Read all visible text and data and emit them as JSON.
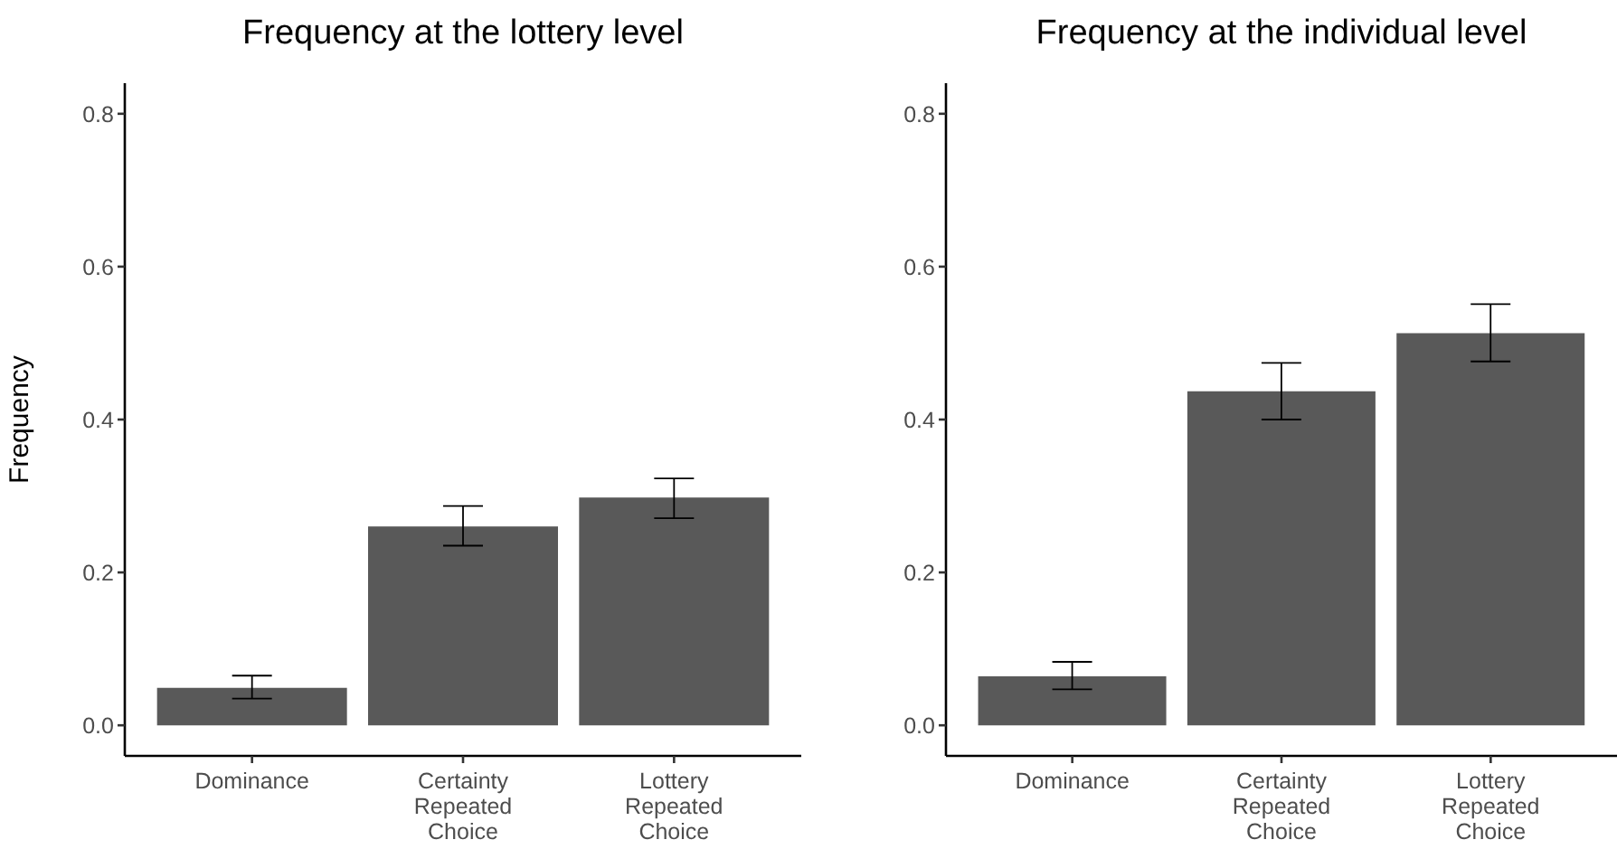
{
  "chart_data": [
    {
      "type": "bar",
      "title": "Frequency at the lottery level",
      "ylabel": "Frequency",
      "categories": [
        "Dominance",
        "Certainty Repeated Choice",
        "Lottery Repeated Choice"
      ],
      "color": "#595959",
      "values": [
        0.049,
        0.26,
        0.298
      ],
      "errors": [
        [
          0.035,
          0.065
        ],
        [
          0.235,
          0.287
        ],
        [
          0.271,
          0.323
        ]
      ],
      "ylim": [
        -0.04,
        0.84
      ],
      "yticks": [
        {
          "value": 0,
          "label": "0.0"
        },
        0.2,
        0.4,
        0.6,
        0.8
      ]
    },
    {
      "type": "bar",
      "title": "Frequency at the individual level",
      "categories": [
        "Dominance",
        "Certainty Repeated Choice",
        "Lottery Repeated Choice"
      ],
      "color": "#595959",
      "values": [
        0.064,
        0.437,
        0.513
      ],
      "errors": [
        [
          0.047,
          0.083
        ],
        [
          0.4,
          0.474
        ],
        [
          0.476,
          0.551
        ]
      ],
      "ylim": [
        -0.04,
        0.84
      ],
      "yticks": [
        {
          "value": 0,
          "label": "0.0"
        },
        0.2,
        0.4,
        0.6,
        0.8
      ]
    }
  ]
}
